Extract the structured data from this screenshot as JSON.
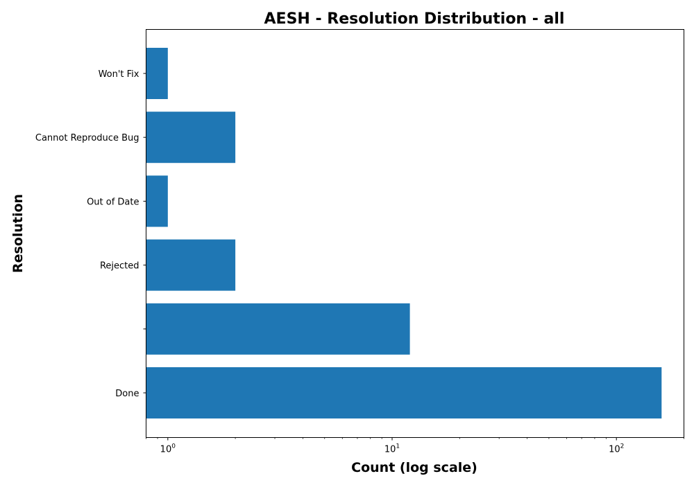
{
  "chart_data": {
    "type": "bar",
    "orientation": "horizontal",
    "title": "AESH - Resolution Distribution - all",
    "xlabel": "Count (log scale)",
    "ylabel": "Resolution",
    "xscale": "log",
    "xlim": [
      0.8,
      200
    ],
    "grid": false,
    "legend": "none",
    "categories": [
      "Done",
      "",
      "Rejected",
      "Out of Date",
      "Cannot Reproduce Bug",
      "Won't Fix"
    ],
    "values": [
      159,
      12,
      2,
      1,
      2,
      1
    ],
    "x_ticks": [
      {
        "base": "10",
        "exp": "0",
        "value": 1
      },
      {
        "base": "10",
        "exp": "1",
        "value": 10
      },
      {
        "base": "10",
        "exp": "2",
        "value": 100
      }
    ],
    "bar_color": "#1f77b4"
  }
}
